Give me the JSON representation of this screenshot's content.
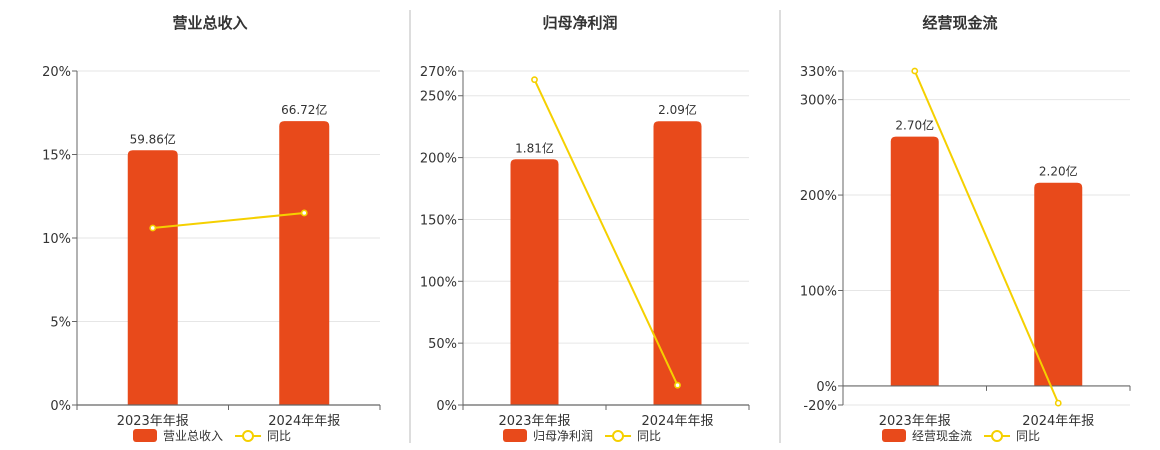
{
  "colors": {
    "bar": "#E84A1B",
    "line": "#F5D000",
    "grid": "#E6E6E6",
    "axis": "#666666",
    "divider": "#BBBBBB"
  },
  "chart_data": [
    {
      "type": "bar",
      "title": "营业总收入",
      "categories": [
        "2023年年报",
        "2024年年报"
      ],
      "series": [
        {
          "name": "营业总收入",
          "type": "bar",
          "axis": "value",
          "values": [
            59.86,
            66.72
          ],
          "labels": [
            "59.86亿",
            "66.72亿"
          ]
        },
        {
          "name": "同比",
          "type": "line",
          "axis": "percent",
          "values": [
            10.6,
            11.5
          ]
        }
      ],
      "yticks": [
        "0%",
        "5%",
        "10%",
        "15%",
        "20%"
      ],
      "ytick_values": [
        0,
        5,
        10,
        15,
        20
      ],
      "ylim": [
        0,
        20
      ],
      "bar_value_max": 78.5,
      "grid": true,
      "legend": "bottom"
    },
    {
      "type": "bar",
      "title": "归母净利润",
      "categories": [
        "2023年年报",
        "2024年年报"
      ],
      "series": [
        {
          "name": "归母净利润",
          "type": "bar",
          "axis": "value",
          "values": [
            1.81,
            2.09
          ],
          "labels": [
            "1.81亿",
            "2.09亿"
          ]
        },
        {
          "name": "同比",
          "type": "line",
          "axis": "percent",
          "values": [
            263,
            16
          ]
        }
      ],
      "yticks": [
        "0%",
        "50%",
        "100%",
        "150%",
        "200%",
        "250%",
        "270%"
      ],
      "ytick_values": [
        0,
        50,
        100,
        150,
        200,
        250,
        270
      ],
      "ylim": [
        0,
        270
      ],
      "bar_value_max": 2.46,
      "grid": true,
      "legend": "bottom"
    },
    {
      "type": "bar",
      "title": "经营现金流",
      "categories": [
        "2023年年报",
        "2024年年报"
      ],
      "series": [
        {
          "name": "经营现金流",
          "type": "bar",
          "axis": "value",
          "values": [
            2.7,
            2.2
          ],
          "labels": [
            "2.70亿",
            "2.20亿"
          ]
        },
        {
          "name": "同比",
          "type": "line",
          "axis": "percent",
          "values": [
            330,
            -18
          ]
        }
      ],
      "yticks": [
        "-20%",
        "0%",
        "100%",
        "200%",
        "300%",
        "330%"
      ],
      "ytick_values": [
        -20,
        0,
        100,
        200,
        300,
        330
      ],
      "ylim": [
        -20,
        330
      ],
      "bar_value_max": 3.41,
      "grid": true,
      "legend": "bottom"
    }
  ]
}
